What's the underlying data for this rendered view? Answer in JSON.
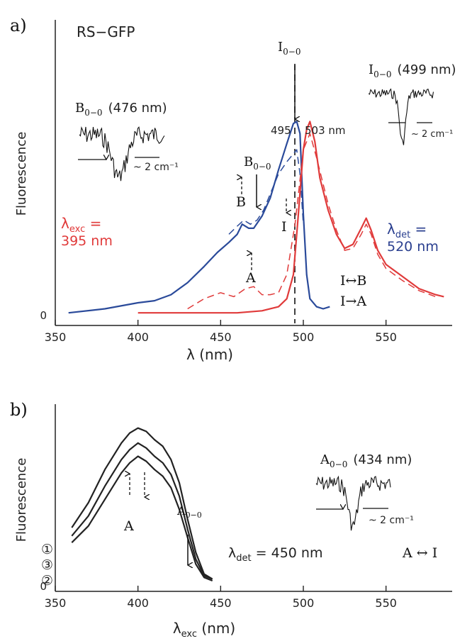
{
  "chart_data": [
    {
      "panel_label": "a)",
      "type": "line",
      "title": "RS−GFP",
      "xlabel": "λ (nm)",
      "ylabel": "Fluorescence",
      "xlim": [
        350,
        590
      ],
      "ylim": [
        0,
        1
      ],
      "x_ticks": [
        "350",
        "400",
        "450",
        "500",
        "550"
      ],
      "y_ticks": [
        "0"
      ],
      "series": [
        {
          "color": "#2a4a9a",
          "style": "solid",
          "x": [
            358,
            380,
            400,
            410,
            420,
            430,
            440,
            448,
            455,
            460,
            463,
            467,
            470,
            475,
            480,
            485,
            490,
            494,
            496,
            498,
            500,
            502,
            504,
            508,
            512,
            516
          ],
          "y": [
            0.01,
            0.03,
            0.06,
            0.07,
            0.1,
            0.16,
            0.24,
            0.31,
            0.36,
            0.4,
            0.45,
            0.43,
            0.43,
            0.49,
            0.58,
            0.72,
            0.85,
            0.95,
            0.96,
            0.9,
            0.5,
            0.2,
            0.08,
            0.04,
            0.03,
            0.04
          ]
        },
        {
          "color": "#2a4a9a",
          "style": "dashed",
          "x": [
            455,
            460,
            464,
            468,
            472,
            476,
            480,
            485,
            490,
            494,
            496,
            498,
            500
          ],
          "y": [
            0.4,
            0.44,
            0.47,
            0.45,
            0.47,
            0.52,
            0.6,
            0.7,
            0.76,
            0.8,
            0.82,
            0.7,
            0.45
          ]
        },
        {
          "color": "#e03a3a",
          "style": "solid",
          "x": [
            400,
            420,
            440,
            460,
            475,
            485,
            490,
            494,
            497,
            500,
            502,
            504,
            507,
            510,
            515,
            520,
            525,
            530,
            535,
            538,
            541,
            545,
            550,
            560,
            570,
            580,
            585
          ],
          "y": [
            0.01,
            0.01,
            0.01,
            0.01,
            0.02,
            0.04,
            0.08,
            0.2,
            0.5,
            0.82,
            0.92,
            0.96,
            0.86,
            0.68,
            0.52,
            0.4,
            0.33,
            0.35,
            0.43,
            0.48,
            0.42,
            0.32,
            0.25,
            0.19,
            0.13,
            0.1,
            0.09
          ]
        },
        {
          "color": "#e03a3a",
          "style": "dashed",
          "x": [
            430,
            440,
            450,
            458,
            465,
            470,
            475,
            480,
            485,
            490,
            495,
            500,
            504,
            508,
            515,
            520,
            525,
            530,
            535,
            538,
            541,
            545,
            550,
            560,
            570,
            580
          ],
          "y": [
            0.03,
            0.08,
            0.11,
            0.09,
            0.13,
            0.14,
            0.1,
            0.1,
            0.11,
            0.2,
            0.45,
            0.82,
            0.9,
            0.78,
            0.55,
            0.42,
            0.32,
            0.33,
            0.4,
            0.45,
            0.4,
            0.3,
            0.23,
            0.17,
            0.12,
            0.09
          ]
        }
      ],
      "peak_labels": [
        "495",
        "503 nm"
      ],
      "annotations": {
        "lambda_exc_sym": "λ",
        "lambda_exc_sub": "exc",
        "lambda_exc_eq": " =",
        "lambda_exc_val": "395 nm",
        "lambda_det_sym": "λ",
        "lambda_det_sub": "det",
        "lambda_det_eq": " =",
        "lambda_det_val": "520 nm",
        "B00_main": "B",
        "B00_sub": "0−0",
        "I00_main": "I",
        "I00_sub": "0−0",
        "label_B": "B",
        "label_I": "I",
        "label_A": "A",
        "legend_IB": "I↔B",
        "legend_IA": "I→A",
        "inset1_main": "B",
        "inset1_sub": "0−0",
        "inset1_val": "(476 nm)",
        "inset1_width": "~ 2 cm⁻¹",
        "inset2_main": "I",
        "inset2_sub": "0−0",
        "inset2_val": "(499 nm)",
        "inset2_width": "~ 2 cm⁻¹"
      }
    },
    {
      "panel_label": "b)",
      "type": "line",
      "title": "",
      "xlabel_sym": "λ",
      "xlabel_sub": "exc",
      "xlabel_unit": " (nm)",
      "ylabel": "Fluorescence",
      "xlim": [
        350,
        590
      ],
      "ylim": [
        0,
        1
      ],
      "x_ticks": [
        "350",
        "400",
        "450",
        "500",
        "550"
      ],
      "y_ticks": [
        "0"
      ],
      "series": [
        {
          "name": "1",
          "color": "#222222",
          "style": "solid",
          "x": [
            360,
            370,
            380,
            390,
            395,
            400,
            405,
            410,
            415,
            420,
            425,
            430,
            435,
            440,
            445
          ],
          "y": [
            0.35,
            0.5,
            0.7,
            0.86,
            0.92,
            0.95,
            0.93,
            0.88,
            0.84,
            0.76,
            0.62,
            0.4,
            0.2,
            0.07,
            0.04
          ]
        },
        {
          "name": "3",
          "color": "#222222",
          "style": "solid",
          "x": [
            360,
            370,
            380,
            390,
            395,
            400,
            405,
            410,
            415,
            420,
            425,
            430,
            435,
            440,
            445
          ],
          "y": [
            0.3,
            0.42,
            0.6,
            0.76,
            0.82,
            0.86,
            0.83,
            0.78,
            0.74,
            0.67,
            0.54,
            0.34,
            0.16,
            0.06,
            0.04
          ]
        },
        {
          "name": "2",
          "color": "#222222",
          "style": "solid",
          "x": [
            360,
            370,
            380,
            390,
            395,
            400,
            405,
            410,
            415,
            420,
            425,
            430,
            435,
            440,
            445
          ],
          "y": [
            0.26,
            0.36,
            0.52,
            0.68,
            0.74,
            0.78,
            0.75,
            0.7,
            0.66,
            0.59,
            0.46,
            0.29,
            0.13,
            0.05,
            0.03
          ]
        }
      ],
      "annotations": {
        "lambda_det_sym": "λ",
        "lambda_det_sub": "det",
        "lambda_det_eq": " = 450 nm",
        "label_A": "A",
        "legend_AI": "A ↔ I",
        "A00_main": "A",
        "A00_sub": "0−0",
        "inset_main": "A",
        "inset_sub": "0−0",
        "inset_val": "(434 nm)",
        "inset_width": "~ 2 cm⁻¹",
        "circled": [
          "①",
          "③",
          "②"
        ]
      }
    }
  ]
}
